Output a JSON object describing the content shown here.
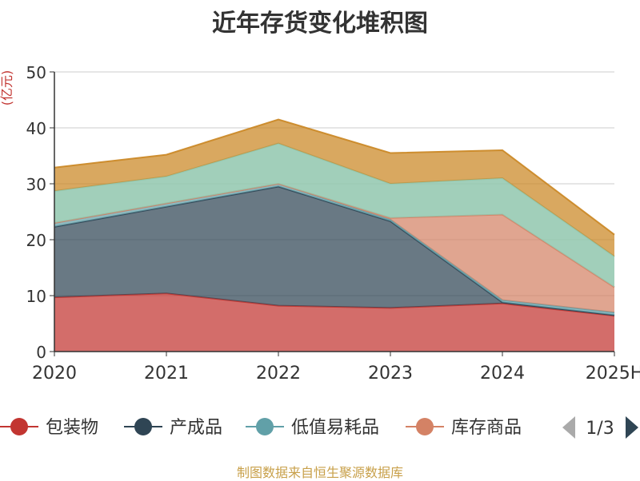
{
  "title": "近年存货变化堆积图",
  "footer": "制图数据来自恒生聚源数据库",
  "colors": {
    "packaging": "#c23531",
    "finished": "#2f4554",
    "consumables": "#61a0a8",
    "goods": "#d48265",
    "other": "#ca8622",
    "fifth_light": "#91c7ae"
  },
  "legend": {
    "items": [
      "包装物",
      "产成品",
      "低值易耗品",
      "库存商品"
    ],
    "page": "1/3"
  },
  "chart_data": {
    "type": "area",
    "stacked": true,
    "title": "近年存货变化堆积图",
    "ylabel": "(亿元)",
    "x": [
      "2020",
      "2021",
      "2022",
      "2023",
      "2024",
      "2025H"
    ],
    "yticks": [
      0,
      10,
      20,
      30,
      40,
      50
    ],
    "ylim": [
      0,
      50
    ],
    "grid": true,
    "legend_position": "bottom",
    "series": [
      {
        "name": "包装物",
        "values": [
          9.7,
          10.4,
          8.2,
          7.8,
          8.6,
          6.4
        ]
      },
      {
        "name": "产成品",
        "values": [
          12.6,
          15.5,
          21.3,
          15.5,
          0.2,
          0.1
        ]
      },
      {
        "name": "低值易耗品",
        "values": [
          0.7,
          0.6,
          0.5,
          0.3,
          0.4,
          0.5
        ]
      },
      {
        "name": "库存商品",
        "values": [
          0,
          0,
          0,
          0.3,
          15.3,
          4.5
        ]
      },
      {
        "values": [
          5.7,
          4.8,
          7.2,
          6.1,
          6.5,
          5.5
        ]
      },
      {
        "values": [
          4.2,
          3.9,
          4.3,
          5.5,
          5.0,
          3.9
        ]
      }
    ]
  }
}
